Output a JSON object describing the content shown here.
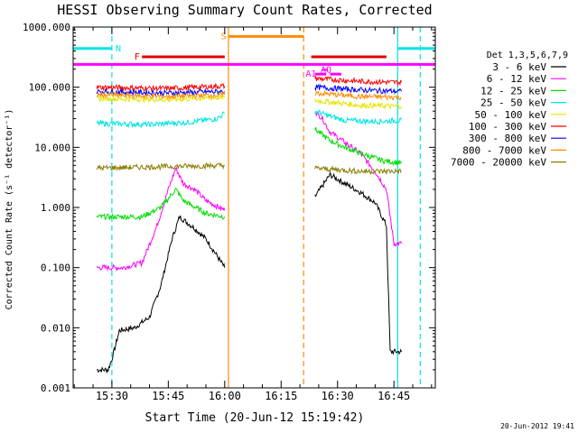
{
  "chart_data": {
    "type": "line",
    "title": "HESSI Observing Summary Count Rates, Corrected",
    "xlabel": "Start Time (20-Jun-12 15:19:42)",
    "ylabel": "Corrected Count Rate (s⁻¹ detector⁻¹)",
    "footer": "20-Jun-2012 19:41",
    "xlim": [
      "15:19:42",
      "16:56:00"
    ],
    "ylim": [
      0.001,
      1000
    ],
    "y_scale": "log",
    "x_ticks": [
      "15:30",
      "15:45",
      "16:00",
      "16:15",
      "16:30",
      "16:45"
    ],
    "y_ticks": [
      "0.001",
      "0.010",
      "0.100",
      "1.000",
      "10.000",
      "100.000",
      "1000.000"
    ],
    "legend_title": "Det 1,3,5,6,7,9",
    "legend_position": "right",
    "series": [
      {
        "name": "3 - 6 keV",
        "color": "#000000"
      },
      {
        "name": "6 - 12 keV",
        "color": "#ff00ff"
      },
      {
        "name": "12 - 25 keV",
        "color": "#00dd00"
      },
      {
        "name": "25 - 50 keV",
        "color": "#00e5e5"
      },
      {
        "name": "50 - 100 keV",
        "color": "#e5e500"
      },
      {
        "name": "100 - 300 keV",
        "color": "#ff0000"
      },
      {
        "name": "300 - 800 keV",
        "color": "#0000ff"
      },
      {
        "name": "800 - 7000 keV",
        "color": "#ff8c00"
      },
      {
        "name": "7000 - 20000 keV",
        "color": "#8b7d00"
      }
    ],
    "series_data": [
      {
        "name": "3 - 6 keV",
        "segments": [
          [
            [
              "15:26:00",
              0.002
            ],
            [
              "15:29:00",
              0.002
            ],
            [
              "15:30:00",
              0.003
            ],
            [
              "15:32:00",
              0.009
            ],
            [
              "15:36:00",
              0.01
            ],
            [
              "15:40:00",
              0.015
            ],
            [
              "15:43:00",
              0.05
            ],
            [
              "15:46:00",
              0.3
            ],
            [
              "15:48:00",
              0.7
            ],
            [
              "15:52:00",
              0.45
            ],
            [
              "15:55:00",
              0.3
            ],
            [
              "16:00:00",
              0.1
            ]
          ],
          [
            [
              "16:24:00",
              1.5
            ],
            [
              "16:28:00",
              3.5
            ],
            [
              "16:32:00",
              2.5
            ],
            [
              "16:36:00",
              1.8
            ],
            [
              "16:40:00",
              1.2
            ],
            [
              "16:43:00",
              0.5
            ],
            [
              "16:44:00",
              0.004
            ],
            [
              "16:47:00",
              0.004
            ]
          ]
        ]
      },
      {
        "name": "6 - 12 keV",
        "segments": [
          [
            [
              "15:26:00",
              0.1
            ],
            [
              "15:33:00",
              0.1
            ],
            [
              "15:38:00",
              0.12
            ],
            [
              "15:42:00",
              0.5
            ],
            [
              "15:45:00",
              2.0
            ],
            [
              "15:47:00",
              4.5
            ],
            [
              "15:49:00",
              2.5
            ],
            [
              "15:52:00",
              2.0
            ],
            [
              "15:55:00",
              1.3
            ],
            [
              "16:00:00",
              0.9
            ]
          ],
          [
            [
              "16:24:00",
              40
            ],
            [
              "16:26:00",
              30
            ],
            [
              "16:28:00",
              18
            ],
            [
              "16:32:00",
              12
            ],
            [
              "16:36:00",
              8.0
            ],
            [
              "16:40:00",
              4.0
            ],
            [
              "16:43:00",
              2.0
            ],
            [
              "16:45:00",
              0.25
            ],
            [
              "16:47:00",
              0.25
            ]
          ]
        ]
      },
      {
        "name": "12 - 25 keV",
        "segments": [
          [
            [
              "15:26:00",
              0.7
            ],
            [
              "15:38:00",
              0.7
            ],
            [
              "15:43:00",
              1.0
            ],
            [
              "15:47:00",
              2.0
            ],
            [
              "15:49:00",
              1.3
            ],
            [
              "15:55:00",
              0.8
            ],
            [
              "16:00:00",
              0.7
            ]
          ],
          [
            [
              "16:24:00",
              20
            ],
            [
              "16:28:00",
              13
            ],
            [
              "16:32:00",
              10
            ],
            [
              "16:36:00",
              8.0
            ],
            [
              "16:42:00",
              6.0
            ],
            [
              "16:47:00",
              5.5
            ]
          ]
        ]
      },
      {
        "name": "25 - 50 keV",
        "segments": [
          [
            [
              "15:26:00",
              25
            ],
            [
              "15:40:00",
              24
            ],
            [
              "15:50:00",
              26
            ],
            [
              "15:58:00",
              30
            ],
            [
              "16:00:00",
              37
            ]
          ],
          [
            [
              "16:24:00",
              40
            ],
            [
              "16:28:00",
              33
            ],
            [
              "16:32:00",
              28
            ],
            [
              "16:40:00",
              27
            ],
            [
              "16:47:00",
              28
            ]
          ]
        ]
      },
      {
        "name": "50 - 100 keV",
        "segments": [
          [
            [
              "15:26:00",
              65
            ],
            [
              "15:45:00",
              62
            ],
            [
              "16:00:00",
              68
            ]
          ],
          [
            [
              "16:24:00",
              60
            ],
            [
              "16:36:00",
              50
            ],
            [
              "16:47:00",
              48
            ]
          ]
        ]
      },
      {
        "name": "100 - 300 keV",
        "segments": [
          [
            [
              "15:26:00",
              100
            ],
            [
              "15:45:00",
              95
            ],
            [
              "16:00:00",
              105
            ]
          ],
          [
            [
              "16:24:00",
              140
            ],
            [
              "16:36:00",
              125
            ],
            [
              "16:47:00",
              120
            ]
          ]
        ]
      },
      {
        "name": "300 - 800 keV",
        "segments": [
          [
            [
              "15:26:00",
              85
            ],
            [
              "15:45:00",
              80
            ],
            [
              "16:00:00",
              85
            ]
          ],
          [
            [
              "16:24:00",
              100
            ],
            [
              "16:36:00",
              90
            ],
            [
              "16:47:00",
              85
            ]
          ]
        ]
      },
      {
        "name": "800 - 7000 keV",
        "segments": [
          [
            [
              "15:26:00",
              75
            ],
            [
              "15:45:00",
              70
            ],
            [
              "16:00:00",
              75
            ]
          ],
          [
            [
              "16:24:00",
              80
            ],
            [
              "16:36:00",
              70
            ],
            [
              "16:47:00",
              68
            ]
          ]
        ]
      },
      {
        "name": "7000 - 20000 keV",
        "segments": [
          [
            [
              "15:26:00",
              4.5
            ],
            [
              "15:45:00",
              4.8
            ],
            [
              "16:00:00",
              5.0
            ]
          ],
          [
            [
              "16:24:00",
              4.5
            ],
            [
              "16:36:00",
              4.0
            ],
            [
              "16:47:00",
              4.0
            ]
          ]
        ]
      }
    ],
    "markers": {
      "vertical_lines": [
        {
          "time": "15:30:00",
          "color": "#00e5e5",
          "style": "dashed"
        },
        {
          "time": "16:01:00",
          "color": "#ff8c00",
          "style": "solid"
        },
        {
          "time": "16:21:00",
          "color": "#ff8c00",
          "style": "dashed"
        },
        {
          "time": "16:46:00",
          "color": "#00e5e5",
          "style": "solid"
        },
        {
          "time": "16:52:00",
          "color": "#00e5e5",
          "style": "dashed"
        }
      ],
      "horizontal_bars": [
        {
          "label": "N",
          "color": "#00e5e5",
          "segments": [
            [
              "15:19:42",
              "15:30:00"
            ],
            [
              "16:46:00",
              "16:56:00"
            ]
          ],
          "level": 440,
          "label_at": "15:31:00",
          "thick": true
        },
        {
          "label": "S",
          "color": "#ff8c00",
          "segments": [
            [
              "16:01:00",
              "16:21:00"
            ]
          ],
          "level": 700,
          "label_at": "15:59:00",
          "thick": true
        },
        {
          "label": "F",
          "color": "#dd0000",
          "segments": [
            [
              "15:38:00",
              "16:00:00"
            ],
            [
              "16:23:00",
              "16:43:00"
            ]
          ],
          "level": 320,
          "label_at": "15:36:00",
          "thick": true
        },
        {
          "label": "",
          "color": "#ff00ff",
          "segments": [
            [
              "15:19:42",
              "16:56:00"
            ]
          ],
          "level": 240,
          "label_at": "",
          "thick": true
        },
        {
          "label": "AQ",
          "color": "#ff00ff",
          "segments": [
            [
              "16:26:00",
              "16:27:30"
            ]
          ],
          "level": 195,
          "label_at": "16:25:30",
          "thick": false
        },
        {
          "label": "A1",
          "color": "#ff00ff",
          "segments": [
            [
              "16:24:00",
              "16:27:00"
            ],
            [
              "16:28:00",
              "16:31:00"
            ]
          ],
          "level": 165,
          "label_at": "16:21:30",
          "thick": true
        }
      ]
    }
  }
}
